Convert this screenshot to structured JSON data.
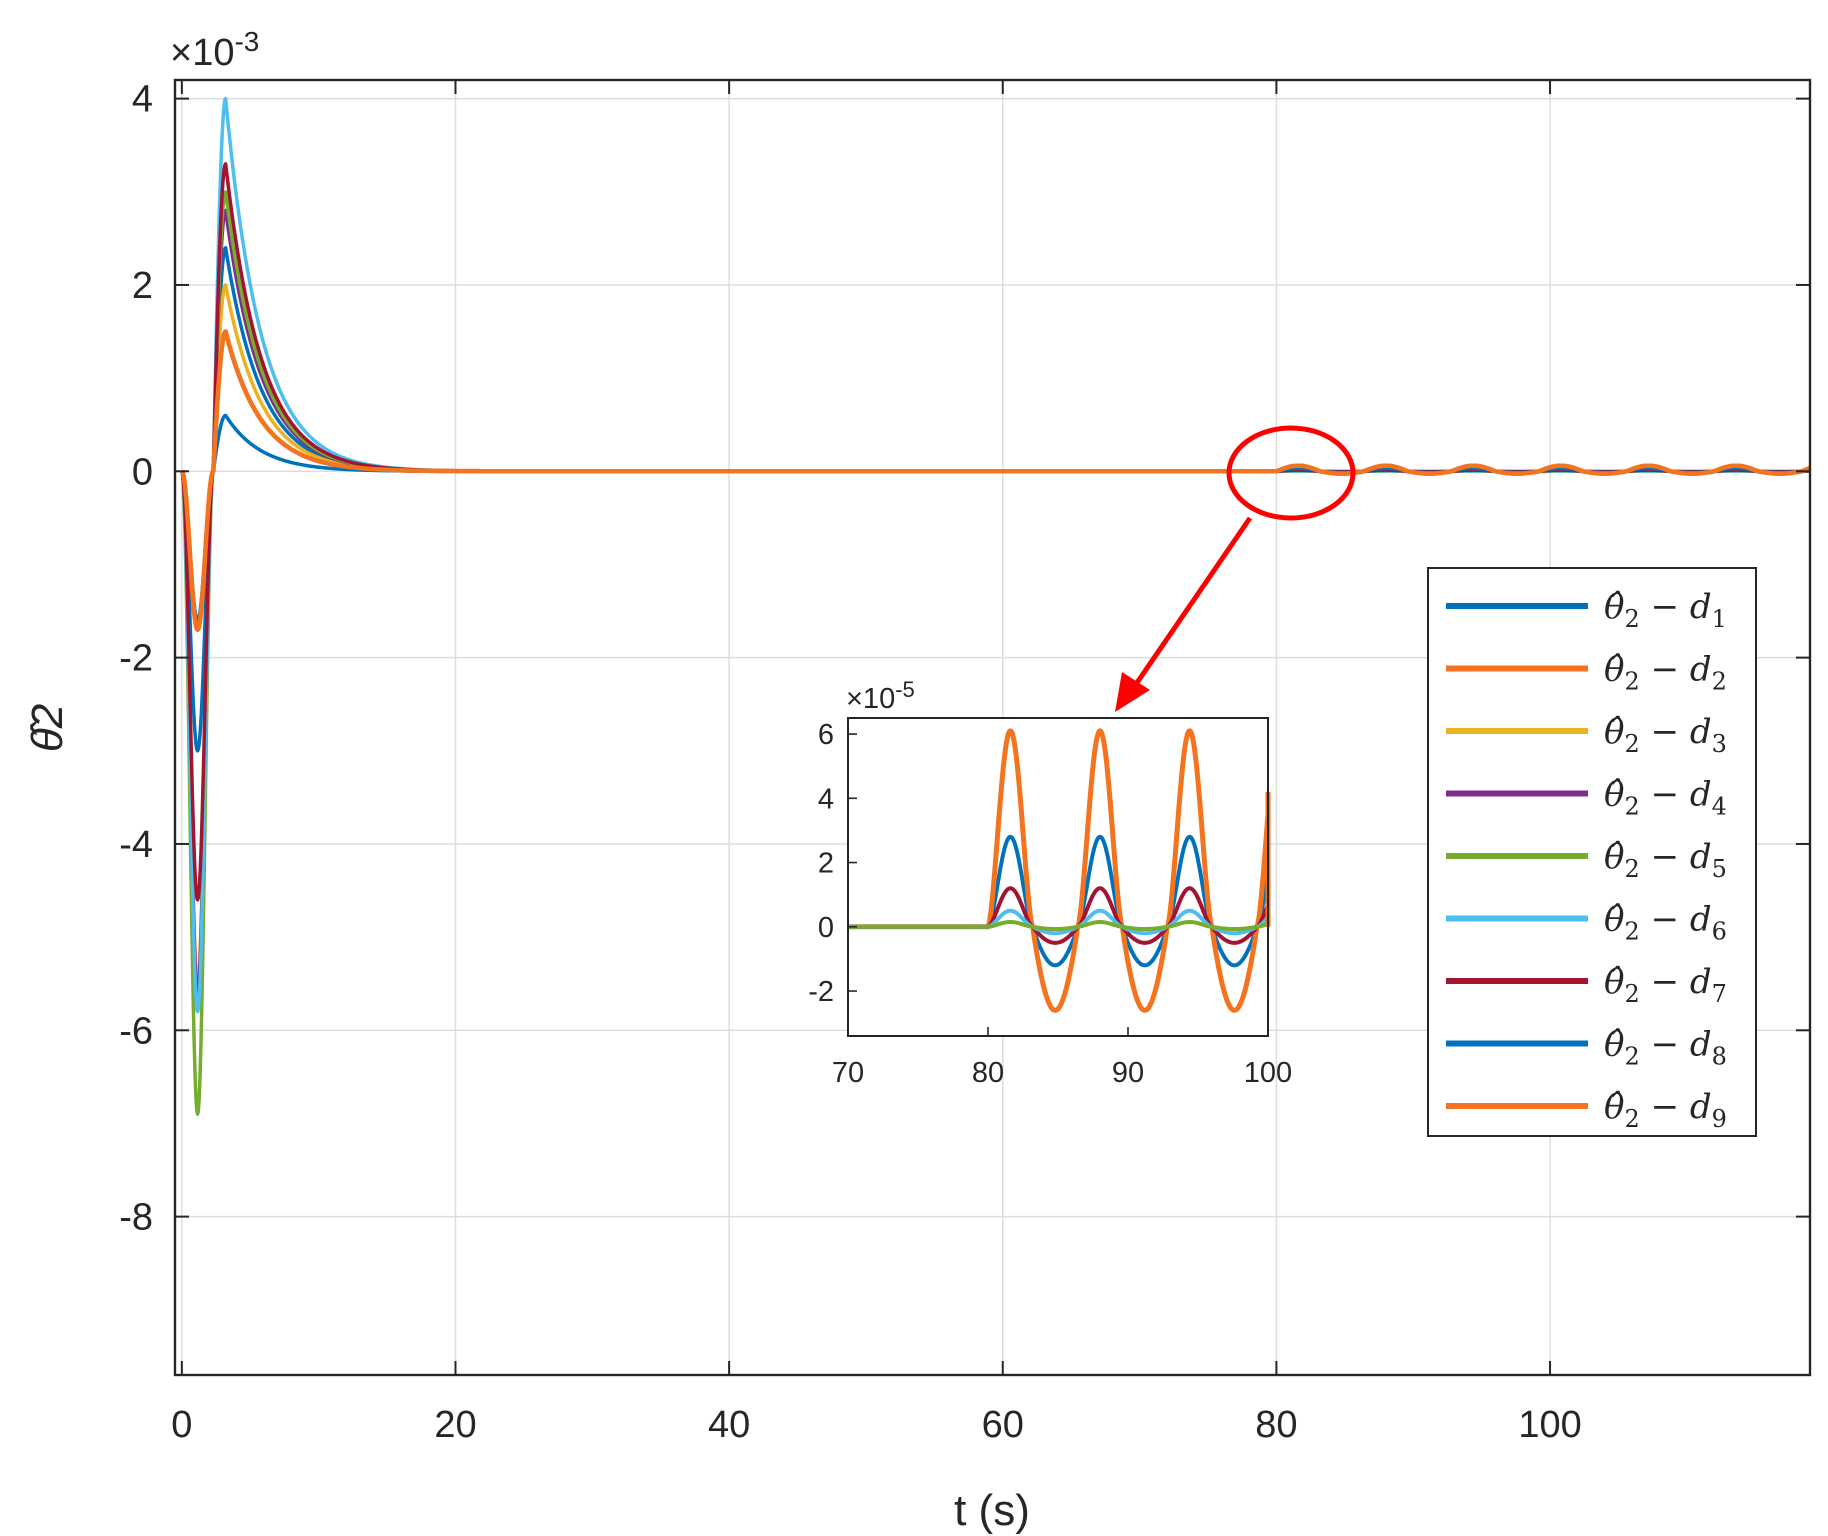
{
  "chart_data": [
    {
      "type": "line",
      "role": "main",
      "xlabel": "t (s)",
      "ylabel": "θ̂2",
      "exponent_label": "×10-3",
      "exponent_base": "×10",
      "exponent_power": "-3",
      "xlim": [
        -0.5,
        119
      ],
      "ylim": [
        -9.7,
        4.2
      ],
      "xticks": [
        0,
        20,
        40,
        60,
        80,
        100
      ],
      "yticks": [
        4,
        2,
        0,
        -2,
        -4,
        -6,
        -8
      ],
      "grid": true,
      "series": [
        {
          "color": "#0072bd",
          "peak_min": -3.0,
          "t_min": 1.5,
          "peak_max": 2.4,
          "t_max": 3.2,
          "osc_amp": 3e-05
        },
        {
          "color": "#f4731f",
          "peak_min": -1.7,
          "t_min": 1.5,
          "peak_max": 1.5,
          "t_max": 3.2,
          "osc_amp": 6e-05
        },
        {
          "color": "#edb120",
          "peak_min": -5.5,
          "t_min": 1.5,
          "peak_max": 2.0,
          "t_max": 3.2,
          "osc_amp": 5e-06
        },
        {
          "color": "#7e2f8e",
          "peak_min": -5.6,
          "t_min": 1.5,
          "peak_max": 2.8,
          "t_max": 3.2,
          "osc_amp": 5e-06
        },
        {
          "color": "#77ac30",
          "peak_min": -6.9,
          "t_min": 1.5,
          "peak_max": 3.0,
          "t_max": 3.2,
          "osc_amp": 2e-06
        },
        {
          "color": "#4dbeee",
          "peak_min": -5.8,
          "t_min": 1.5,
          "peak_max": 4.0,
          "t_max": 3.2,
          "osc_amp": 5e-06
        },
        {
          "color": "#a2142f",
          "peak_min": -4.6,
          "t_min": 1.5,
          "peak_max": 3.3,
          "t_max": 3.2,
          "osc_amp": 1.2e-05
        },
        {
          "color": "#0072bd",
          "peak_min": -1.6,
          "t_min": 1.5,
          "peak_max": 0.6,
          "t_max": 3.2,
          "osc_amp": 3e-05
        },
        {
          "color": "#f4731f",
          "peak_min": -1.7,
          "t_min": 1.5,
          "peak_max": 1.5,
          "t_max": 3.2,
          "osc_amp": 6e-05
        }
      ],
      "legend": {
        "placement": "right",
        "entries": [
          {
            "base": "θ̂",
            "sub": "2",
            "op": " − ",
            "var": "d",
            "idx": "1",
            "color": "#0072bd"
          },
          {
            "base": "θ̂",
            "sub": "2",
            "op": " − ",
            "var": "d",
            "idx": "2",
            "color": "#f4731f"
          },
          {
            "base": "θ̂",
            "sub": "2",
            "op": " − ",
            "var": "d",
            "idx": "3",
            "color": "#edb120"
          },
          {
            "base": "θ̂",
            "sub": "2",
            "op": " − ",
            "var": "d",
            "idx": "4",
            "color": "#7e2f8e"
          },
          {
            "base": "θ̂",
            "sub": "2",
            "op": " − ",
            "var": "d",
            "idx": "5",
            "color": "#77ac30"
          },
          {
            "base": "θ̂",
            "sub": "2",
            "op": " − ",
            "var": "d",
            "idx": "6",
            "color": "#4dbeee"
          },
          {
            "base": "θ̂",
            "sub": "2",
            "op": " − ",
            "var": "d",
            "idx": "7",
            "color": "#a2142f"
          },
          {
            "base": "θ̂",
            "sub": "2",
            "op": " − ",
            "var": "d",
            "idx": "8",
            "color": "#0072bd"
          },
          {
            "base": "θ̂",
            "sub": "2",
            "op": " − ",
            "var": "d",
            "idx": "9",
            "color": "#f4731f"
          }
        ]
      }
    },
    {
      "type": "line",
      "role": "inset",
      "exponent_label": "×10-5",
      "exponent_base": "×10",
      "exponent_power": "-5",
      "xlim": [
        70,
        100
      ],
      "ylim": [
        -3.4,
        6.5
      ],
      "xticks": [
        70,
        80,
        90,
        100
      ],
      "yticks": [
        6,
        4,
        2,
        0,
        -2
      ],
      "grid": false,
      "series": [
        {
          "color": "#0072bd",
          "amp_pos": 2.8,
          "amp_neg": 1.2
        },
        {
          "color": "#f4731f",
          "amp_pos": 6.1,
          "amp_neg": 2.6
        },
        {
          "color": "#a2142f",
          "amp_pos": 1.2,
          "amp_neg": 0.5
        },
        {
          "color": "#4dbeee",
          "amp_pos": 0.5,
          "amp_neg": 0.2
        },
        {
          "color": "#77ac30",
          "amp_pos": 0.15,
          "amp_neg": 0.07
        }
      ]
    }
  ],
  "annotation": {
    "type": "zoom-circle-arrow",
    "color": "#ff0000",
    "center_t": 80.5,
    "center_y": 0.1
  }
}
